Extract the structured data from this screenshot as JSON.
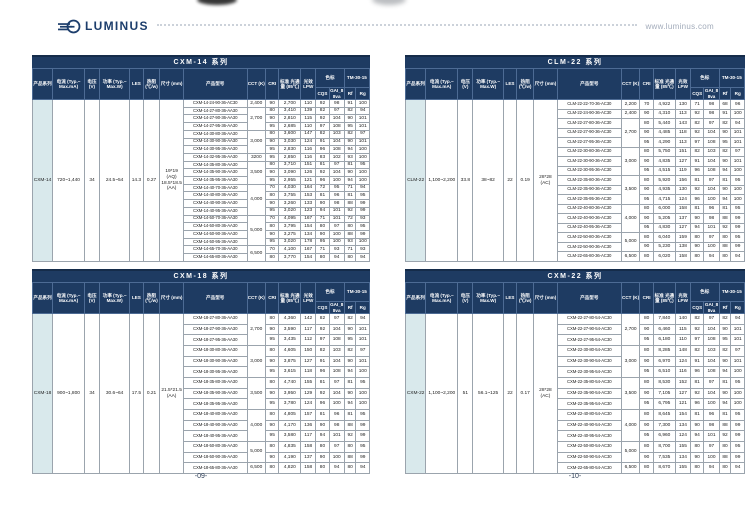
{
  "header": {
    "brand": "LUMINUS",
    "url": "www.luminus.com"
  },
  "footer": {
    "left_page": "-09-",
    "right_page": "-10-"
  },
  "colors": {
    "navy": "#1e3b62",
    "series_cell_bg": "#d9e9ec",
    "brand_navy": "#1d3e6c"
  },
  "icons": {
    "logo": "luminus-swirl-icon"
  },
  "columns": {
    "series": "产品系列",
    "current": "电流 (Typ.~ Max.mA)",
    "voltage": "电压 (V)",
    "power": "功率 (Typ.~ Max.W)",
    "les": "LES",
    "thermal": "热阻 (℃/w)",
    "size": "尺寸 (mm)",
    "model": "产品型号",
    "cct": "CCT (K)",
    "cri": "CRI",
    "flux": "标准 光通量 (85℃)",
    "lpw": "光效 LPW",
    "color_group": "色标",
    "tm_group": "TM-30-15",
    "cqs": "CQS",
    "gai": "GAI_88va",
    "rf": "Rf",
    "rg": "Rg"
  },
  "tables": [
    {
      "title": "CXM-14 系列",
      "info": {
        "series": "CXM-14",
        "current": "720~1,440",
        "voltage": "34",
        "power": "24.5~54",
        "les": "14.3",
        "thermal": "0.27",
        "size_lines": [
          "19*19",
          "(AQ)",
          "18.5*18.5",
          "(AA)"
        ]
      },
      "rows": [
        [
          "CXM-14-24-90-36-AC30",
          "2,400",
          1,
          "90",
          "2,700",
          "110",
          "92",
          "98",
          "91",
          "100"
        ],
        [
          "CXM-14-27-80-36-AA30",
          "2,700",
          3,
          "80",
          "3,410",
          "139",
          "82",
          "97",
          "82",
          "94"
        ],
        [
          "CXM-14-27-90-36-AA30",
          "",
          0,
          "90",
          "2,810",
          "115",
          "92",
          "104",
          "90",
          "101"
        ],
        [
          "CXM-14-27-95-36-AA30",
          "",
          0,
          "95",
          "2,685",
          "110",
          "97",
          "108",
          "95",
          "101"
        ],
        [
          "CXM-14-30-80-36-AA30",
          "3,000",
          3,
          "80",
          "3,600",
          "147",
          "82",
          "103",
          "82",
          "97"
        ],
        [
          "CXM-14-30-90-36-AA30",
          "",
          0,
          "90",
          "3,030",
          "124",
          "91",
          "104",
          "90",
          "101"
        ],
        [
          "CXM-14-30-95-36-AA30",
          "",
          0,
          "95",
          "2,830",
          "116",
          "96",
          "108",
          "94",
          "100"
        ],
        [
          "CXM-14-32-95-36-AA30",
          "3200",
          1,
          "95",
          "2,850",
          "116",
          "83",
          "102",
          "93",
          "100"
        ],
        [
          "CXM-14-35-80-36-AA30",
          "3,500",
          3,
          "80",
          "3,710",
          "151",
          "81",
          "97",
          "81",
          "95"
        ],
        [
          "CXM-14-35-90-36-AA30",
          "",
          0,
          "90",
          "3,090",
          "126",
          "92",
          "104",
          "90",
          "100"
        ],
        [
          "CXM-14-35-95-36-AA30",
          "",
          0,
          "95",
          "2,955",
          "121",
          "96",
          "100",
          "94",
          "100"
        ],
        [
          "CXM-14-40-70-36-AA30",
          "4,000",
          4,
          "70",
          "4,030",
          "164",
          "72",
          "95",
          "71",
          "94"
        ],
        [
          "CXM-14-40-80-36-AA30",
          "",
          0,
          "80",
          "3,755",
          "153",
          "81",
          "96",
          "81",
          "95"
        ],
        [
          "CXM-14-40-90-36-AA30",
          "",
          0,
          "90",
          "3,260",
          "133",
          "90",
          "98",
          "88",
          "99"
        ],
        [
          "CXM-14-40-95-36-AA30",
          "",
          0,
          "95",
          "3,020",
          "123",
          "94",
          "101",
          "92",
          "99"
        ],
        [
          "CXM-14-50-70-36-AA30",
          "5,000",
          4,
          "70",
          "4,095",
          "167",
          "71",
          "101",
          "72",
          "93"
        ],
        [
          "CXM-14-50-80-36-AA30",
          "",
          0,
          "80",
          "3,795",
          "154",
          "80",
          "97",
          "80",
          "95"
        ],
        [
          "CXM-14-50-90-36-AA30",
          "",
          0,
          "90",
          "3,275",
          "134",
          "90",
          "100",
          "88",
          "99"
        ],
        [
          "CXM-14-50-95-36-AA30",
          "",
          0,
          "95",
          "3,020",
          "178",
          "95",
          "100",
          "93",
          "100"
        ],
        [
          "CXM-14-65-70-36-AA30",
          "6,500",
          2,
          "70",
          "4,100",
          "167",
          "71",
          "93",
          "71",
          "93"
        ],
        [
          "CXM-14-65-80-36-AA30",
          "",
          0,
          "80",
          "3,770",
          "154",
          "80",
          "94",
          "80",
          "94"
        ]
      ]
    },
    {
      "title": "CLM-22 系列",
      "info": {
        "series": "CLM-22",
        "current": "1,100~2,200",
        "voltage": "33.8",
        "power": "38~82",
        "les": "22",
        "thermal": "0.19",
        "size_lines": [
          "28*28",
          "(AC)"
        ]
      },
      "rows": [
        [
          "CLM-22-22-70-36-AC30",
          "2,200",
          1,
          "70",
          "4,922",
          "130",
          "71",
          "98",
          "68",
          "96"
        ],
        [
          "CLM-22-24-90-36-AC30",
          "2,400",
          1,
          "90",
          "4,310",
          "113",
          "92",
          "98",
          "91",
          "100"
        ],
        [
          "CLM-22-27-80-36-AC30",
          "2,700",
          3,
          "80",
          "5,440",
          "143",
          "82",
          "97",
          "82",
          "94"
        ],
        [
          "CLM-22-27-90-36-AC30",
          "",
          0,
          "90",
          "4,485",
          "118",
          "92",
          "104",
          "90",
          "101"
        ],
        [
          "CLM-22-27-95-36-AC30",
          "",
          0,
          "95",
          "4,290",
          "113",
          "97",
          "108",
          "95",
          "101"
        ],
        [
          "CLM-22-30-80-36-AC30",
          "3,000",
          3,
          "80",
          "5,750",
          "151",
          "82",
          "103",
          "82",
          "97"
        ],
        [
          "CLM-22-30-90-36-AC30",
          "",
          0,
          "90",
          "4,835",
          "127",
          "91",
          "104",
          "90",
          "101"
        ],
        [
          "CLM-22-30-95-36-AC30",
          "",
          0,
          "95",
          "4,515",
          "119",
          "96",
          "108",
          "94",
          "100"
        ],
        [
          "CLM-22-35-80-36-AC30",
          "3,500",
          3,
          "80",
          "5,920",
          "156",
          "81",
          "97",
          "81",
          "95"
        ],
        [
          "CLM-22-35-90-36-AC30",
          "",
          0,
          "90",
          "4,935",
          "130",
          "92",
          "104",
          "90",
          "100"
        ],
        [
          "CLM-22-35-95-36-AC30",
          "",
          0,
          "95",
          "4,715",
          "124",
          "96",
          "100",
          "94",
          "100"
        ],
        [
          "CLM-22-40-80-36-AC30",
          "4,000",
          3,
          "80",
          "6,000",
          "158",
          "81",
          "96",
          "81",
          "95"
        ],
        [
          "CLM-22-40-90-36-AC30",
          "",
          0,
          "90",
          "5,205",
          "137",
          "90",
          "98",
          "88",
          "99"
        ],
        [
          "CLM-22-40-95-36-AC30",
          "",
          0,
          "95",
          "4,830",
          "127",
          "94",
          "101",
          "92",
          "99"
        ],
        [
          "CLM-22-50-80-36-AC30",
          "5,000",
          2,
          "80",
          "6,040",
          "159",
          "80",
          "97",
          "80",
          "95"
        ],
        [
          "CLM-22-50-90-36-AC30",
          "",
          0,
          "90",
          "5,230",
          "138",
          "90",
          "100",
          "88",
          "99"
        ],
        [
          "CLM-22-65-80-36-AC30",
          "6,500",
          1,
          "80",
          "6,020",
          "158",
          "80",
          "94",
          "80",
          "94"
        ]
      ]
    },
    {
      "title": "CXM-18 系列",
      "info": {
        "series": "CXM-18",
        "current": "900~1,800",
        "voltage": "34",
        "power": "30.6~64",
        "les": "17.5",
        "thermal": "0.21",
        "size_lines": [
          "21.5*21.5",
          "(AA)"
        ]
      },
      "rows": [
        [
          "CXM-18-27-80-36-AA30",
          "2,700",
          3,
          "80",
          "4,360",
          "142",
          "82",
          "97",
          "82",
          "94"
        ],
        [
          "CXM-18-27-90-36-AA30",
          "",
          0,
          "90",
          "3,590",
          "117",
          "92",
          "104",
          "90",
          "101"
        ],
        [
          "CXM-18-27-95-36-AA30",
          "",
          0,
          "95",
          "3,435",
          "112",
          "97",
          "108",
          "95",
          "101"
        ],
        [
          "CXM-18-30-80-36-AA30",
          "3,000",
          3,
          "80",
          "4,605",
          "150",
          "82",
          "103",
          "82",
          "97"
        ],
        [
          "CXM-18-30-90-36-AA30",
          "",
          0,
          "90",
          "3,875",
          "127",
          "91",
          "104",
          "90",
          "101"
        ],
        [
          "CXM-18-30-95-36-AA30",
          "",
          0,
          "95",
          "3,615",
          "118",
          "96",
          "108",
          "94",
          "100"
        ],
        [
          "CXM-18-35-80-36-AA30",
          "3,500",
          3,
          "80",
          "4,740",
          "155",
          "81",
          "97",
          "81",
          "95"
        ],
        [
          "CXM-18-35-90-36-AA30",
          "",
          0,
          "90",
          "3,950",
          "129",
          "92",
          "104",
          "90",
          "100"
        ],
        [
          "CXM-18-35-95-36-AA30",
          "",
          0,
          "95",
          "3,780",
          "124",
          "96",
          "100",
          "94",
          "100"
        ],
        [
          "CXM-18-40-80-36-AA30",
          "4,000",
          3,
          "80",
          "4,805",
          "157",
          "81",
          "96",
          "81",
          "95"
        ],
        [
          "CXM-18-40-90-36-AA30",
          "",
          0,
          "90",
          "4,170",
          "136",
          "90",
          "98",
          "88",
          "99"
        ],
        [
          "CXM-18-40-95-36-AA30",
          "",
          0,
          "95",
          "3,580",
          "117",
          "94",
          "101",
          "92",
          "99"
        ],
        [
          "CXM-18-50-80-36-AA30",
          "5,000",
          2,
          "80",
          "4,835",
          "158",
          "80",
          "97",
          "80",
          "95"
        ],
        [
          "CXM-18-50-90-36-AA30",
          "",
          0,
          "90",
          "4,190",
          "137",
          "90",
          "100",
          "88",
          "99"
        ],
        [
          "CXM-18-65-80-36-AA30",
          "6,500",
          1,
          "80",
          "4,820",
          "158",
          "80",
          "94",
          "80",
          "94"
        ]
      ]
    },
    {
      "title": "CXM-22 系列",
      "info": {
        "series": "CXM-22",
        "current": "1,100~2,200",
        "voltage": "51",
        "power": "56.1~125",
        "les": "22",
        "thermal": "0.17",
        "size_lines": [
          "28*28",
          "(AC)"
        ]
      },
      "rows": [
        [
          "CXM-22-27-80-54-AC30",
          "2,700",
          3,
          "80",
          "7,840",
          "140",
          "82",
          "97",
          "82",
          "94"
        ],
        [
          "CXM-22-27-90-54-AC30",
          "",
          0,
          "90",
          "6,460",
          "115",
          "92",
          "104",
          "90",
          "101"
        ],
        [
          "CXM-22-27-95-54-AC30",
          "",
          0,
          "95",
          "6,180",
          "110",
          "97",
          "108",
          "95",
          "101"
        ],
        [
          "CXM-22-30-80-54-AC30",
          "3,000",
          3,
          "80",
          "8,285",
          "148",
          "82",
          "103",
          "82",
          "97"
        ],
        [
          "CXM-22-30-90-54-AC30",
          "",
          0,
          "90",
          "6,970",
          "124",
          "91",
          "104",
          "90",
          "101"
        ],
        [
          "CXM-22-30-95-54-AC30",
          "",
          0,
          "95",
          "6,510",
          "116",
          "96",
          "108",
          "94",
          "100"
        ],
        [
          "CXM-22-35-80-54-AC30",
          "3,500",
          3,
          "80",
          "8,530",
          "152",
          "81",
          "97",
          "81",
          "95"
        ],
        [
          "CXM-22-35-90-54-AC30",
          "",
          0,
          "90",
          "7,105",
          "127",
          "92",
          "104",
          "90",
          "100"
        ],
        [
          "CXM-22-35-95-54-AC30",
          "",
          0,
          "95",
          "6,795",
          "121",
          "96",
          "100",
          "94",
          "100"
        ],
        [
          "CXM-22-40-80-54-AC30",
          "4,000",
          3,
          "80",
          "8,645",
          "154",
          "81",
          "96",
          "81",
          "95"
        ],
        [
          "CXM-22-40-90-54-AC30",
          "",
          0,
          "90",
          "7,300",
          "134",
          "90",
          "98",
          "88",
          "99"
        ],
        [
          "CXM-22-40-95-54-AC30",
          "",
          0,
          "95",
          "6,960",
          "124",
          "94",
          "101",
          "92",
          "99"
        ],
        [
          "CXM-22-50-80-54-AC30",
          "5,000",
          2,
          "80",
          "8,700",
          "155",
          "80",
          "97",
          "80",
          "95"
        ],
        [
          "CXM-22-50-90-54-AC30",
          "",
          0,
          "90",
          "7,535",
          "134",
          "90",
          "100",
          "88",
          "99"
        ],
        [
          "CXM-22-65-80-54-AC30",
          "6,500",
          1,
          "80",
          "8,670",
          "155",
          "80",
          "94",
          "80",
          "94"
        ]
      ]
    }
  ]
}
